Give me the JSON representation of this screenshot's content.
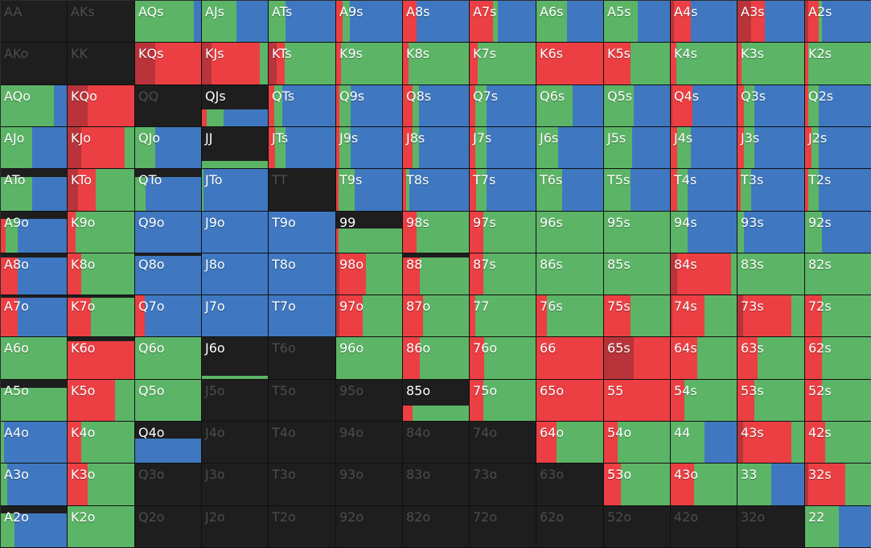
{
  "colors": {
    "background": "#1e1e1e",
    "green": "#5cb566",
    "blue": "#3f78c0",
    "red": "#ec3f43",
    "dark_red": "#b8333a",
    "inactive_text": "#4c4c4c"
  },
  "hands": [
    [
      "AA",
      "AKs",
      "AQs",
      "AJs",
      "ATs",
      "A9s",
      "A8s",
      "A7s",
      "A6s",
      "A5s",
      "A4s",
      "A3s",
      "A2s"
    ],
    [
      "AKo",
      "KK",
      "KQs",
      "KJs",
      "KTs",
      "K9s",
      "K8s",
      "K7s",
      "K6s",
      "K5s",
      "K4s",
      "K3s",
      "K2s"
    ],
    [
      "AQo",
      "KQo",
      "QQ",
      "QJs",
      "QTs",
      "Q9s",
      "Q8s",
      "Q7s",
      "Q6s",
      "Q5s",
      "Q4s",
      "Q3s",
      "Q2s"
    ],
    [
      "AJo",
      "KJo",
      "QJo",
      "JJ",
      "JTs",
      "J9s",
      "J8s",
      "J7s",
      "J6s",
      "J5s",
      "J4s",
      "J3s",
      "J2s"
    ],
    [
      "ATo",
      "KTo",
      "QTo",
      "JTo",
      "TT",
      "T9s",
      "T8s",
      "T7s",
      "T6s",
      "T5s",
      "T4s",
      "T3s",
      "T2s"
    ],
    [
      "A9o",
      "K9o",
      "Q9o",
      "J9o",
      "T9o",
      "99",
      "98s",
      "97s",
      "96s",
      "95s",
      "94s",
      "93s",
      "92s"
    ],
    [
      "A8o",
      "K8o",
      "Q8o",
      "J8o",
      "T8o",
      "98o",
      "88",
      "87s",
      "86s",
      "85s",
      "84s",
      "83s",
      "82s"
    ],
    [
      "A7o",
      "K7o",
      "Q7o",
      "J7o",
      "T7o",
      "97o",
      "87o",
      "77",
      "76s",
      "75s",
      "74s",
      "73s",
      "72s"
    ],
    [
      "A6o",
      "K6o",
      "Q6o",
      "J6o",
      "T6o",
      "96o",
      "86o",
      "76o",
      "66",
      "65s",
      "64s",
      "63s",
      "62s"
    ],
    [
      "A5o",
      "K5o",
      "Q5o",
      "J5o",
      "T5o",
      "95o",
      "85o",
      "75o",
      "65o",
      "55",
      "54s",
      "53s",
      "52s"
    ],
    [
      "A4o",
      "K4o",
      "Q4o",
      "J4o",
      "T4o",
      "94o",
      "84o",
      "74o",
      "64o",
      "54o",
      "44",
      "43s",
      "42s"
    ],
    [
      "A3o",
      "K3o",
      "Q3o",
      "J3o",
      "T3o",
      "93o",
      "83o",
      "73o",
      "63o",
      "53o",
      "43o",
      "33",
      "32s"
    ],
    [
      "A2o",
      "K2o",
      "Q2o",
      "J2o",
      "T2o",
      "92o",
      "82o",
      "72o",
      "62o",
      "52o",
      "42o",
      "32o",
      "22"
    ]
  ],
  "frequencies": [
    [
      [
        0,
        0,
        0,
        0,
        0
      ],
      [
        0,
        0,
        0,
        0,
        0
      ],
      [
        1,
        0,
        0,
        0.88,
        0.12
      ],
      [
        1,
        0,
        0,
        0.52,
        0.48
      ],
      [
        1,
        0,
        0,
        0.25,
        0.75
      ],
      [
        1,
        0,
        0.1,
        0.1,
        0.8
      ],
      [
        1,
        0,
        0.2,
        0,
        0.8
      ],
      [
        1,
        0,
        0.35,
        0.07,
        0.58
      ],
      [
        1,
        0,
        0,
        0.45,
        0.55
      ],
      [
        1,
        0,
        0,
        0.5,
        0.5
      ],
      [
        1,
        0.05,
        0.25,
        0,
        0.7
      ],
      [
        1,
        0.2,
        0.2,
        0,
        0.6
      ],
      [
        1,
        0.05,
        0.15,
        0.05,
        0.75
      ]
    ],
    [
      [
        0,
        0,
        0,
        0,
        0
      ],
      [
        0,
        0,
        0,
        0,
        0
      ],
      [
        1,
        0.3,
        0.7,
        0,
        0
      ],
      [
        1,
        0.15,
        0.72,
        0.13,
        0
      ],
      [
        1,
        0.12,
        0.12,
        0.76,
        0
      ],
      [
        1,
        0,
        0.07,
        0.93,
        0
      ],
      [
        1,
        0,
        0.08,
        0.92,
        0
      ],
      [
        1,
        0,
        0.12,
        0.88,
        0
      ],
      [
        1,
        0,
        1,
        0,
        0
      ],
      [
        1,
        0,
        0.4,
        0.6,
        0
      ],
      [
        1,
        0,
        0.08,
        0.92,
        0
      ],
      [
        1,
        0,
        0.06,
        0.94,
        0
      ],
      [
        1,
        0,
        0.05,
        0.95,
        0
      ]
    ],
    [
      [
        1,
        0,
        0,
        0.8,
        0.2
      ],
      [
        1,
        0.3,
        0.7,
        0,
        0
      ],
      [
        0,
        0,
        0,
        0,
        0
      ],
      [
        0.42,
        0,
        0.07,
        0.25,
        0.68
      ],
      [
        1,
        0,
        0.08,
        0.12,
        0.8
      ],
      [
        1,
        0,
        0.05,
        0.17,
        0.78
      ],
      [
        1,
        0,
        0.14,
        0.1,
        0.76
      ],
      [
        1,
        0,
        0.08,
        0.17,
        0.75
      ],
      [
        1,
        0,
        0,
        0.53,
        0.47
      ],
      [
        1,
        0,
        0,
        0.45,
        0.55
      ],
      [
        1,
        0.02,
        0.3,
        0,
        0.68
      ],
      [
        1,
        0,
        0.1,
        0.15,
        0.75
      ],
      [
        1,
        0,
        0.05,
        0.15,
        0.8
      ]
    ],
    [
      [
        1,
        0,
        0,
        0.47,
        0.53
      ],
      [
        1,
        0.2,
        0.64,
        0.16,
        0
      ],
      [
        1,
        0,
        0,
        0.3,
        0.7
      ],
      [
        0.2,
        0,
        0,
        1,
        0
      ],
      [
        1,
        0,
        0.1,
        0.15,
        0.75
      ],
      [
        1,
        0,
        0.05,
        0.17,
        0.78
      ],
      [
        1,
        0,
        0.14,
        0.1,
        0.76
      ],
      [
        1,
        0,
        0.08,
        0.17,
        0.75
      ],
      [
        1,
        0,
        0,
        0.32,
        0.68
      ],
      [
        1,
        0,
        0,
        0.42,
        0.58
      ],
      [
        1,
        0,
        0.1,
        0.2,
        0.7
      ],
      [
        1,
        0,
        0.1,
        0.15,
        0.75
      ],
      [
        1,
        0,
        0.1,
        0.1,
        0.8
      ]
    ],
    [
      [
        0.82,
        0,
        0,
        0.47,
        0.53
      ],
      [
        1,
        0.15,
        0.27,
        0.58,
        0
      ],
      [
        0.82,
        0,
        0,
        0.16,
        0.84
      ],
      [
        1,
        0,
        0,
        0.03,
        0.97
      ],
      [
        0,
        0,
        0,
        0,
        0
      ],
      [
        1,
        0,
        0.04,
        0.24,
        0.72
      ],
      [
        1,
        0,
        0.05,
        0.05,
        0.9
      ],
      [
        1,
        0,
        0.1,
        0.15,
        0.75
      ],
      [
        1,
        0,
        0,
        0.38,
        0.62
      ],
      [
        1,
        0,
        0,
        0.4,
        0.6
      ],
      [
        1,
        0,
        0.1,
        0.15,
        0.75
      ],
      [
        1,
        0,
        0.05,
        0.15,
        0.8
      ],
      [
        1,
        0,
        0.05,
        0.15,
        0.8
      ]
    ],
    [
      [
        0.82,
        0,
        0.07,
        0.18,
        0.75
      ],
      [
        1,
        0,
        0.12,
        0.88,
        0
      ],
      [
        1,
        0,
        0,
        0,
        1
      ],
      [
        1,
        0,
        0,
        0,
        1
      ],
      [
        1,
        0,
        0,
        0,
        1
      ],
      [
        0.6,
        0,
        0.04,
        0.96,
        0
      ],
      [
        1,
        0,
        0.2,
        0.8,
        0
      ],
      [
        1,
        0,
        0.2,
        0.8,
        0
      ],
      [
        1,
        0,
        0,
        1,
        0
      ],
      [
        1,
        0,
        0,
        1,
        0
      ],
      [
        1,
        0,
        0,
        0.25,
        0.75
      ],
      [
        1,
        0,
        0,
        0.1,
        0.9
      ],
      [
        1,
        0,
        0,
        0.25,
        0.75
      ]
    ],
    [
      [
        0.9,
        0,
        0.25,
        0,
        0.75
      ],
      [
        1,
        0,
        0.2,
        0.8,
        0
      ],
      [
        0.95,
        0,
        0,
        0,
        1
      ],
      [
        1,
        0,
        0,
        0,
        1
      ],
      [
        1,
        0,
        0,
        0,
        1
      ],
      [
        1,
        0.05,
        0.4,
        0.55,
        0
      ],
      [
        0.9,
        0,
        0.25,
        0.75,
        0
      ],
      [
        1,
        0,
        0.2,
        0.8,
        0
      ],
      [
        1,
        0,
        0,
        1,
        0
      ],
      [
        1,
        0,
        0,
        1,
        0
      ],
      [
        1,
        0.1,
        0.8,
        0.1,
        0
      ],
      [
        1,
        0,
        0,
        1,
        0
      ],
      [
        1,
        0,
        0,
        1,
        0
      ]
    ],
    [
      [
        0.95,
        0,
        0.25,
        0,
        0.75
      ],
      [
        0.95,
        0,
        0.35,
        0.65,
        0
      ],
      [
        1,
        0,
        0.15,
        0,
        0.85
      ],
      [
        1,
        0,
        0,
        0,
        1
      ],
      [
        1,
        0,
        0,
        0,
        1
      ],
      [
        1,
        0.05,
        0.35,
        0.6,
        0
      ],
      [
        1,
        0,
        0.3,
        0.7,
        0
      ],
      [
        1,
        0,
        0.08,
        0.92,
        0
      ],
      [
        1,
        0,
        0.15,
        0.85,
        0
      ],
      [
        1,
        0,
        0.4,
        0.6,
        0
      ],
      [
        1,
        0.02,
        0.48,
        0.5,
        0
      ],
      [
        1,
        0.08,
        0.72,
        0.2,
        0
      ],
      [
        1,
        0,
        0.25,
        0.75,
        0
      ]
    ],
    [
      [
        1,
        0,
        0,
        1,
        0
      ],
      [
        0.9,
        0,
        1,
        0,
        0
      ],
      [
        1,
        0,
        0,
        1,
        0
      ],
      [
        0.1,
        0,
        0,
        1,
        0
      ],
      [
        0,
        0,
        0,
        0,
        0
      ],
      [
        1,
        0,
        0,
        1,
        0
      ],
      [
        1,
        0,
        0.25,
        0.75,
        0
      ],
      [
        1,
        0,
        0.22,
        0.78,
        0
      ],
      [
        1,
        0,
        1,
        0,
        0
      ],
      [
        1,
        0.45,
        0.55,
        0,
        0
      ],
      [
        1,
        0,
        0.4,
        0.6,
        0
      ],
      [
        1,
        0,
        0.3,
        0.7,
        0
      ],
      [
        1,
        0,
        0.25,
        0.75,
        0
      ]
    ],
    [
      [
        0.8,
        0,
        0,
        1,
        0
      ],
      [
        1,
        0,
        0.7,
        0.3,
        0
      ],
      [
        1,
        0,
        0,
        1,
        0
      ],
      [
        0,
        0,
        0,
        0,
        0
      ],
      [
        0,
        0,
        0,
        0,
        0
      ],
      [
        0,
        0,
        0,
        0,
        0
      ],
      [
        0.38,
        0,
        0.15,
        0.85,
        0
      ],
      [
        1,
        0,
        0.2,
        0.8,
        0
      ],
      [
        1,
        0,
        1,
        0,
        0
      ],
      [
        1,
        0,
        1,
        0,
        0
      ],
      [
        1,
        0,
        0.2,
        0.8,
        0
      ],
      [
        1,
        0,
        0.25,
        0.75,
        0
      ],
      [
        1,
        0,
        0.25,
        0.75,
        0
      ]
    ],
    [
      [
        1,
        0,
        0,
        0.05,
        0.95
      ],
      [
        1,
        0,
        0.2,
        0.8,
        0
      ],
      [
        0.6,
        0,
        0,
        0,
        1
      ],
      [
        0,
        0,
        0,
        0,
        0
      ],
      [
        0,
        0,
        0,
        0,
        0
      ],
      [
        0,
        0,
        0,
        0,
        0
      ],
      [
        0,
        0,
        0,
        0,
        0
      ],
      [
        0,
        0,
        0,
        0,
        0
      ],
      [
        1,
        0,
        0.3,
        0.7,
        0
      ],
      [
        1,
        0,
        0.2,
        0.8,
        0
      ],
      [
        1,
        0,
        0,
        0.5,
        0.5
      ],
      [
        1,
        0.08,
        0.72,
        0.2,
        0
      ],
      [
        1,
        0,
        0.3,
        0.7,
        0
      ]
    ],
    [
      [
        1,
        0,
        0,
        0.1,
        0.9
      ],
      [
        1,
        0,
        0.3,
        0.7,
        0
      ],
      [
        0,
        0,
        0,
        0,
        0
      ],
      [
        0,
        0,
        0,
        0,
        0
      ],
      [
        0,
        0,
        0,
        0,
        0
      ],
      [
        0,
        0,
        0,
        0,
        0
      ],
      [
        0,
        0,
        0,
        0,
        0
      ],
      [
        0,
        0,
        0,
        0,
        0
      ],
      [
        0,
        0,
        0,
        0,
        0
      ],
      [
        1,
        0,
        0.25,
        0.75,
        0
      ],
      [
        1,
        0,
        0.35,
        0.65,
        0
      ],
      [
        1,
        0,
        0,
        0.5,
        0.5
      ],
      [
        1,
        0.05,
        0.55,
        0.4,
        0
      ]
    ],
    [
      [
        0.82,
        0,
        0,
        0.2,
        0.8
      ],
      [
        1,
        0,
        0,
        1,
        0
      ],
      [
        0,
        0,
        0,
        0,
        0
      ],
      [
        0,
        0,
        0,
        0,
        0
      ],
      [
        0,
        0,
        0,
        0,
        0
      ],
      [
        0,
        0,
        0,
        0,
        0
      ],
      [
        0,
        0,
        0,
        0,
        0
      ],
      [
        0,
        0,
        0,
        0,
        0
      ],
      [
        0,
        0,
        0,
        0,
        0
      ],
      [
        0,
        0,
        0,
        0,
        0
      ],
      [
        0,
        0,
        0,
        0,
        0
      ],
      [
        0,
        0,
        0,
        0,
        0
      ],
      [
        1,
        0,
        0,
        0.5,
        0.5
      ]
    ]
  ]
}
